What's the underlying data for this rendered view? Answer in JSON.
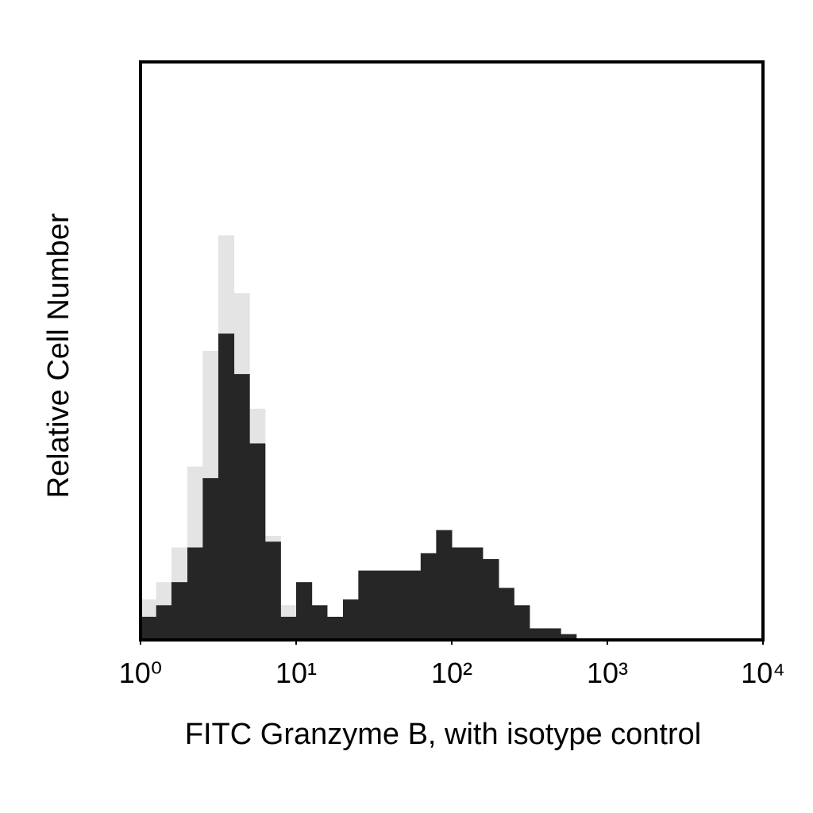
{
  "chart_data": {
    "type": "histogram",
    "x_label": "FITC Granzyme B, with isotype control",
    "y_label": "Relative Cell Number",
    "xscale": "log",
    "xlim": [
      1,
      10000
    ],
    "ylim": [
      0,
      100
    ],
    "xticks": [
      {
        "value": 1,
        "label": "10⁰"
      },
      {
        "value": 10,
        "label": "10¹"
      },
      {
        "value": 100,
        "label": "10²"
      },
      {
        "value": 1000,
        "label": "10³"
      },
      {
        "value": 10000,
        "label": "10⁴"
      }
    ],
    "grid": false,
    "bins": [
      1,
      1.26,
      1.58,
      2.0,
      2.51,
      3.16,
      3.98,
      5.01,
      6.31,
      7.94,
      10,
      12.6,
      15.8,
      20.0,
      25.1,
      31.6,
      39.8,
      50.1,
      63.1,
      79.4,
      100,
      126,
      158,
      200,
      251,
      316,
      398,
      501,
      631,
      794
    ],
    "series": [
      {
        "color": "#e4e4e4",
        "values": [
          7,
          10,
          16,
          30,
          50,
          70,
          60,
          40,
          18,
          6,
          4,
          3,
          2,
          1,
          1,
          1,
          1,
          1,
          1,
          1,
          1,
          1,
          1,
          1,
          1,
          0,
          0,
          0,
          0
        ]
      },
      {
        "color": "#262626",
        "values": [
          4,
          6,
          10,
          16,
          28,
          53,
          46,
          34,
          17,
          4,
          10,
          6,
          4,
          7,
          12,
          12,
          12,
          12,
          15,
          19,
          16,
          16,
          14,
          9,
          6,
          2,
          2,
          1,
          0
        ]
      }
    ]
  }
}
